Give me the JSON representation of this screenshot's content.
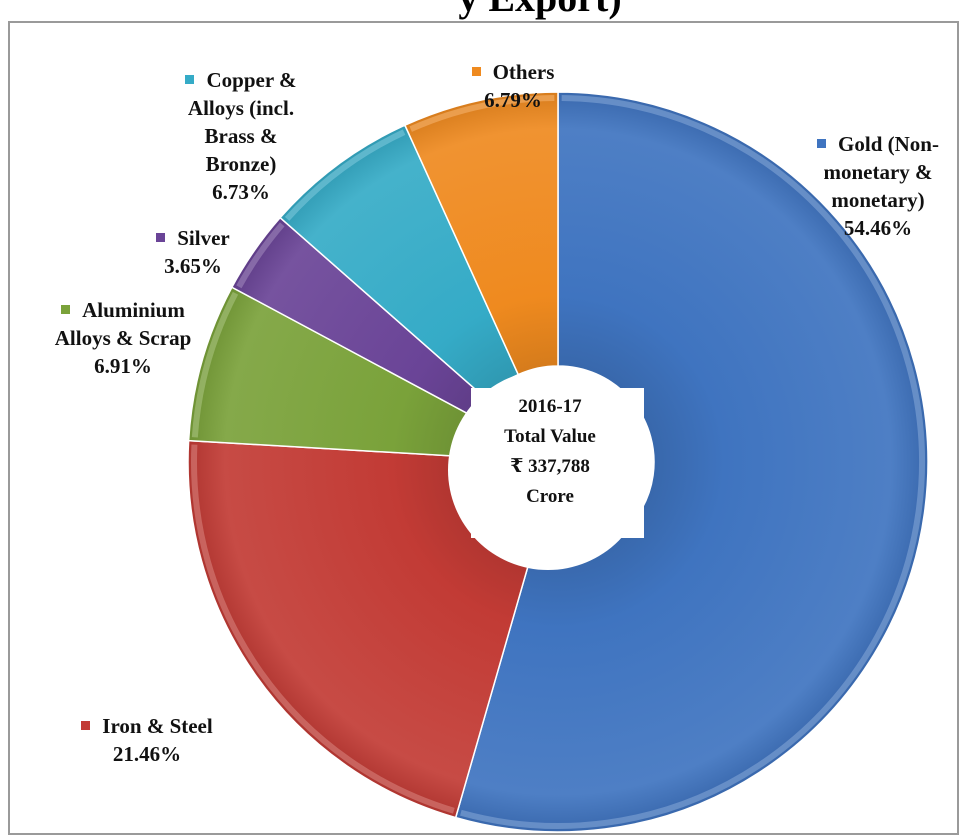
{
  "chart_data": {
    "type": "pie",
    "title": "y Export)",
    "center_label": [
      "2016-17",
      "Total Value",
      "₹ 337,788",
      "Crore"
    ],
    "legend_placement": "callouts",
    "slices": [
      {
        "name": "Gold (Non-\nmonetary &\nmonetary)",
        "value": 54.46,
        "label": "54.46%",
        "color": "#3f74c0"
      },
      {
        "name": "Iron & Steel",
        "value": 21.46,
        "label": "21.46%",
        "color": "#c23b35"
      },
      {
        "name": "Aluminium\nAlloys & Scrap",
        "value": 6.91,
        "label": "6.91%",
        "color": "#7aa23a"
      },
      {
        "name": "Silver",
        "value": 3.65,
        "label": "3.65%",
        "color": "#6a4497"
      },
      {
        "name": "Copper &\nAlloys (incl.\nBrass &\nBronze)",
        "value": 6.73,
        "label": "6.73%",
        "color": "#35abc7"
      },
      {
        "name": "Others",
        "value": 6.79,
        "label": "6.79%",
        "color": "#ef8a1f"
      }
    ]
  }
}
